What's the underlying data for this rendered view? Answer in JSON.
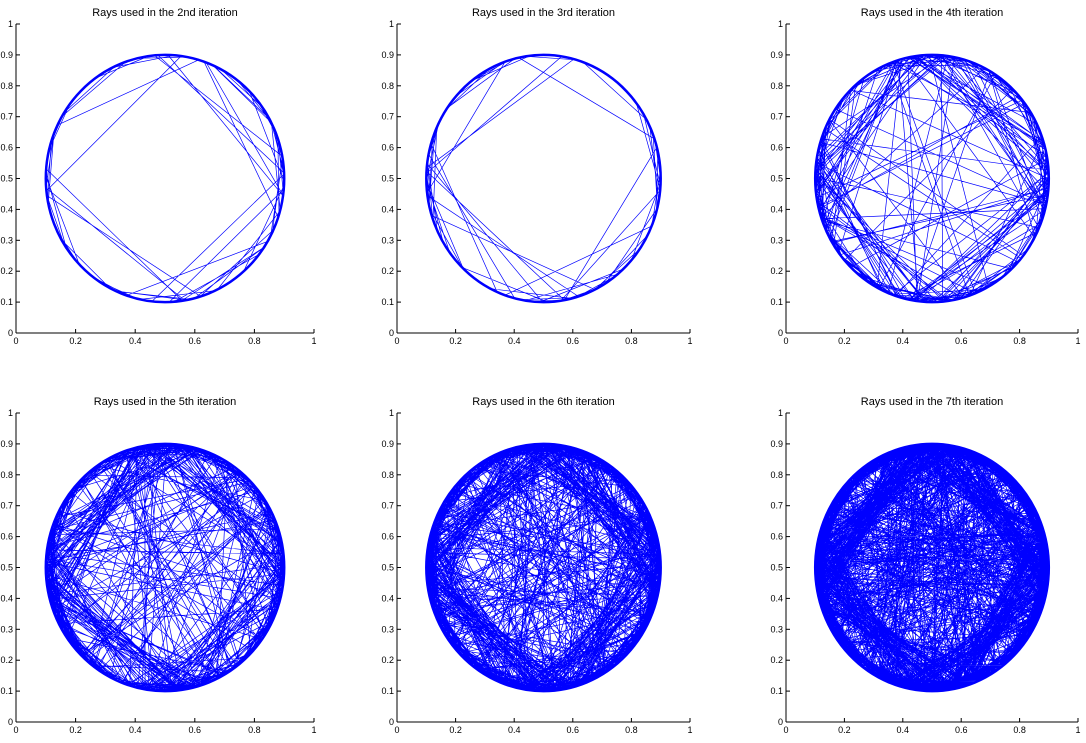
{
  "figure": {
    "background": "#ffffff",
    "line_color": "#0000ff"
  },
  "chart_data": [
    {
      "type": "line",
      "title": "Rays used in the 2nd iteration",
      "iteration": 2,
      "shape": "circle",
      "center": [
        0.5,
        0.5
      ],
      "radius": 0.4,
      "ray_density": "sparse",
      "xlim": [
        0,
        1
      ],
      "ylim": [
        0,
        1
      ],
      "x_tick_labels": [
        "0",
        "0.2",
        "0.4",
        "0.6",
        "0.8",
        "1"
      ],
      "y_tick_labels": [
        "0",
        "0.1",
        "0.2",
        "0.3",
        "0.4",
        "0.5",
        "0.6",
        "0.7",
        "0.8",
        "0.9",
        "1"
      ],
      "grid": false
    },
    {
      "type": "line",
      "title": "Rays used in the 3rd iteration",
      "iteration": 3,
      "shape": "circle",
      "center": [
        0.5,
        0.5
      ],
      "radius": 0.4,
      "ray_density": "sparse",
      "xlim": [
        0,
        1
      ],
      "ylim": [
        0,
        1
      ],
      "x_tick_labels": [
        "0",
        "0.2",
        "0.4",
        "0.6",
        "0.8",
        "1"
      ],
      "y_tick_labels": [
        "0",
        "0.1",
        "0.2",
        "0.3",
        "0.4",
        "0.5",
        "0.6",
        "0.7",
        "0.8",
        "0.9",
        "1"
      ],
      "grid": false
    },
    {
      "type": "line",
      "title": "Rays used in the 4th iteration",
      "iteration": 4,
      "shape": "circle",
      "center": [
        0.5,
        0.5
      ],
      "radius": 0.4,
      "ray_density": "medium",
      "xlim": [
        0,
        1
      ],
      "ylim": [
        0,
        1
      ],
      "x_tick_labels": [
        "0",
        "0.2",
        "0.4",
        "0.6",
        "0.8",
        "1"
      ],
      "y_tick_labels": [
        "0",
        "0.1",
        "0.2",
        "0.3",
        "0.4",
        "0.5",
        "0.6",
        "0.7",
        "0.8",
        "0.9",
        "1"
      ],
      "grid": false
    },
    {
      "type": "line",
      "title": "Rays used in the 5th iteration",
      "iteration": 5,
      "shape": "circle",
      "center": [
        0.5,
        0.5
      ],
      "radius": 0.4,
      "ray_density": "dense",
      "xlim": [
        0,
        1
      ],
      "ylim": [
        0,
        1
      ],
      "x_tick_labels": [
        "0",
        "0.2",
        "0.4",
        "0.6",
        "0.8",
        "1"
      ],
      "y_tick_labels": [
        "0",
        "0.1",
        "0.2",
        "0.3",
        "0.4",
        "0.5",
        "0.6",
        "0.7",
        "0.8",
        "0.9",
        "1"
      ],
      "grid": false
    },
    {
      "type": "line",
      "title": "Rays used in the 6th iteration",
      "iteration": 6,
      "shape": "circle",
      "center": [
        0.5,
        0.5
      ],
      "radius": 0.4,
      "ray_density": "very dense",
      "xlim": [
        0,
        1
      ],
      "ylim": [
        0,
        1
      ],
      "x_tick_labels": [
        "0",
        "0.2",
        "0.4",
        "0.6",
        "0.8",
        "1"
      ],
      "y_tick_labels": [
        "0",
        "0.1",
        "0.2",
        "0.3",
        "0.4",
        "0.5",
        "0.6",
        "0.7",
        "0.8",
        "0.9",
        "1"
      ],
      "grid": false
    },
    {
      "type": "line",
      "title": "Rays used in the 7th iteration",
      "iteration": 7,
      "shape": "circle",
      "center": [
        0.5,
        0.5
      ],
      "radius": 0.4,
      "ray_density": "saturated",
      "xlim": [
        0,
        1
      ],
      "ylim": [
        0,
        1
      ],
      "x_tick_labels": [
        "0",
        "0.2",
        "0.4",
        "0.6",
        "0.8",
        "1"
      ],
      "y_tick_labels": [
        "0",
        "0.1",
        "0.2",
        "0.3",
        "0.4",
        "0.5",
        "0.6",
        "0.7",
        "0.8",
        "0.9",
        "1"
      ],
      "grid": false
    }
  ]
}
